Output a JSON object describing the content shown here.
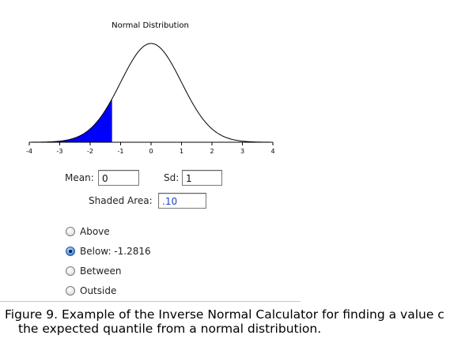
{
  "chart_data": {
    "type": "area",
    "title": "Normal Distribution",
    "distribution": "normal",
    "mean": 0,
    "sd": 1,
    "xlim": [
      -4,
      4
    ],
    "x_ticks": [
      "-4",
      "-3",
      "-2",
      "-1",
      "0",
      "1",
      "2",
      "3",
      "4"
    ],
    "shaded_region": {
      "side": "below",
      "upper_bound": -1.2816,
      "area": 0.1
    },
    "colors": {
      "curve": "#000000",
      "shade": "#0000ff",
      "axis": "#000000"
    }
  },
  "form": {
    "mean_label": "Mean:",
    "mean_value": "0",
    "sd_label": "Sd:",
    "sd_value": "1",
    "shaded_area_label": "Shaded Area:",
    "shaded_area_value": ".10"
  },
  "options": [
    {
      "label": "Above",
      "selected": false
    },
    {
      "label": "Below: -1.2816",
      "selected": true
    },
    {
      "label": "Between",
      "selected": false
    },
    {
      "label": "Outside",
      "selected": false
    }
  ],
  "caption": {
    "line1": "Figure 9. Example of the Inverse Normal Calculator for finding a value c",
    "line2": "the expected quantile from a normal distribution."
  }
}
